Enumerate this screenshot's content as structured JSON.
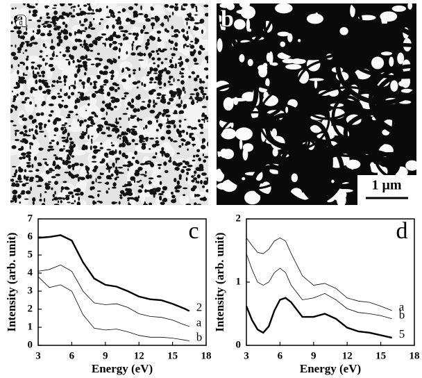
{
  "images": [
    {
      "label": "a"
    },
    {
      "label": "b",
      "scale_bar": "1 μm"
    }
  ],
  "chart_data": [
    {
      "type": "line",
      "panel_label": "c",
      "xlabel": "Energy (eV)",
      "ylabel": "Intensity (arb. unit)",
      "x": [
        3,
        4,
        5,
        6,
        7,
        8,
        9,
        10,
        11,
        12,
        13,
        14,
        15,
        16,
        16.5
      ],
      "xlim": [
        3,
        18
      ],
      "xticks": [
        3,
        6,
        9,
        12,
        15,
        18
      ],
      "ylim": [
        0,
        7
      ],
      "yticks": [
        0,
        1,
        2,
        3,
        4,
        5,
        6,
        7
      ],
      "series": [
        {
          "name": "2",
          "color": "#000000",
          "line_width": 2.4,
          "values": [
            5.95,
            6.0,
            6.1,
            5.8,
            4.6,
            3.7,
            3.35,
            3.25,
            3.0,
            2.7,
            2.55,
            2.5,
            2.3,
            2.05,
            1.9
          ]
        },
        {
          "name": "a",
          "color": "#000000",
          "line_width": 0.8,
          "values": [
            4.1,
            4.2,
            4.45,
            4.1,
            3.0,
            2.35,
            2.25,
            2.3,
            2.1,
            1.75,
            1.6,
            1.55,
            1.4,
            1.15,
            1.05
          ]
        },
        {
          "name": "b",
          "color": "#000000",
          "line_width": 0.8,
          "values": [
            3.8,
            3.2,
            3.35,
            3.0,
            1.7,
            0.95,
            0.85,
            0.9,
            0.75,
            0.55,
            0.45,
            0.45,
            0.4,
            0.3,
            0.25
          ]
        }
      ]
    },
    {
      "type": "line",
      "panel_label": "d",
      "xlabel": "Energy (eV)",
      "ylabel": "Intensity (arb. unit)",
      "x": [
        3,
        3.5,
        4,
        4.5,
        5,
        5.5,
        6,
        6.5,
        7,
        8,
        9,
        10,
        11,
        12,
        13,
        14,
        15,
        16
      ],
      "xlim": [
        3,
        18
      ],
      "xticks": [
        3,
        6,
        9,
        12,
        15,
        18
      ],
      "ylim": [
        0,
        2
      ],
      "yticks": [
        0,
        1,
        2
      ],
      "series": [
        {
          "name": "a",
          "color": "#000000",
          "line_width": 0.8,
          "values": [
            1.7,
            1.58,
            1.47,
            1.45,
            1.52,
            1.65,
            1.7,
            1.65,
            1.45,
            1.1,
            0.95,
            0.98,
            0.9,
            0.75,
            0.7,
            0.68,
            0.62,
            0.55
          ]
        },
        {
          "name": "b",
          "color": "#000000",
          "line_width": 0.8,
          "values": [
            1.45,
            1.2,
            1.0,
            0.95,
            1.0,
            1.15,
            1.22,
            1.15,
            0.95,
            0.72,
            0.75,
            0.82,
            0.72,
            0.58,
            0.52,
            0.5,
            0.47,
            0.42
          ]
        },
        {
          "name": "5",
          "color": "#000000",
          "line_width": 2.4,
          "values": [
            0.62,
            0.4,
            0.25,
            0.2,
            0.3,
            0.55,
            0.72,
            0.75,
            0.68,
            0.45,
            0.45,
            0.5,
            0.42,
            0.28,
            0.22,
            0.2,
            0.16,
            0.12
          ]
        }
      ]
    }
  ]
}
